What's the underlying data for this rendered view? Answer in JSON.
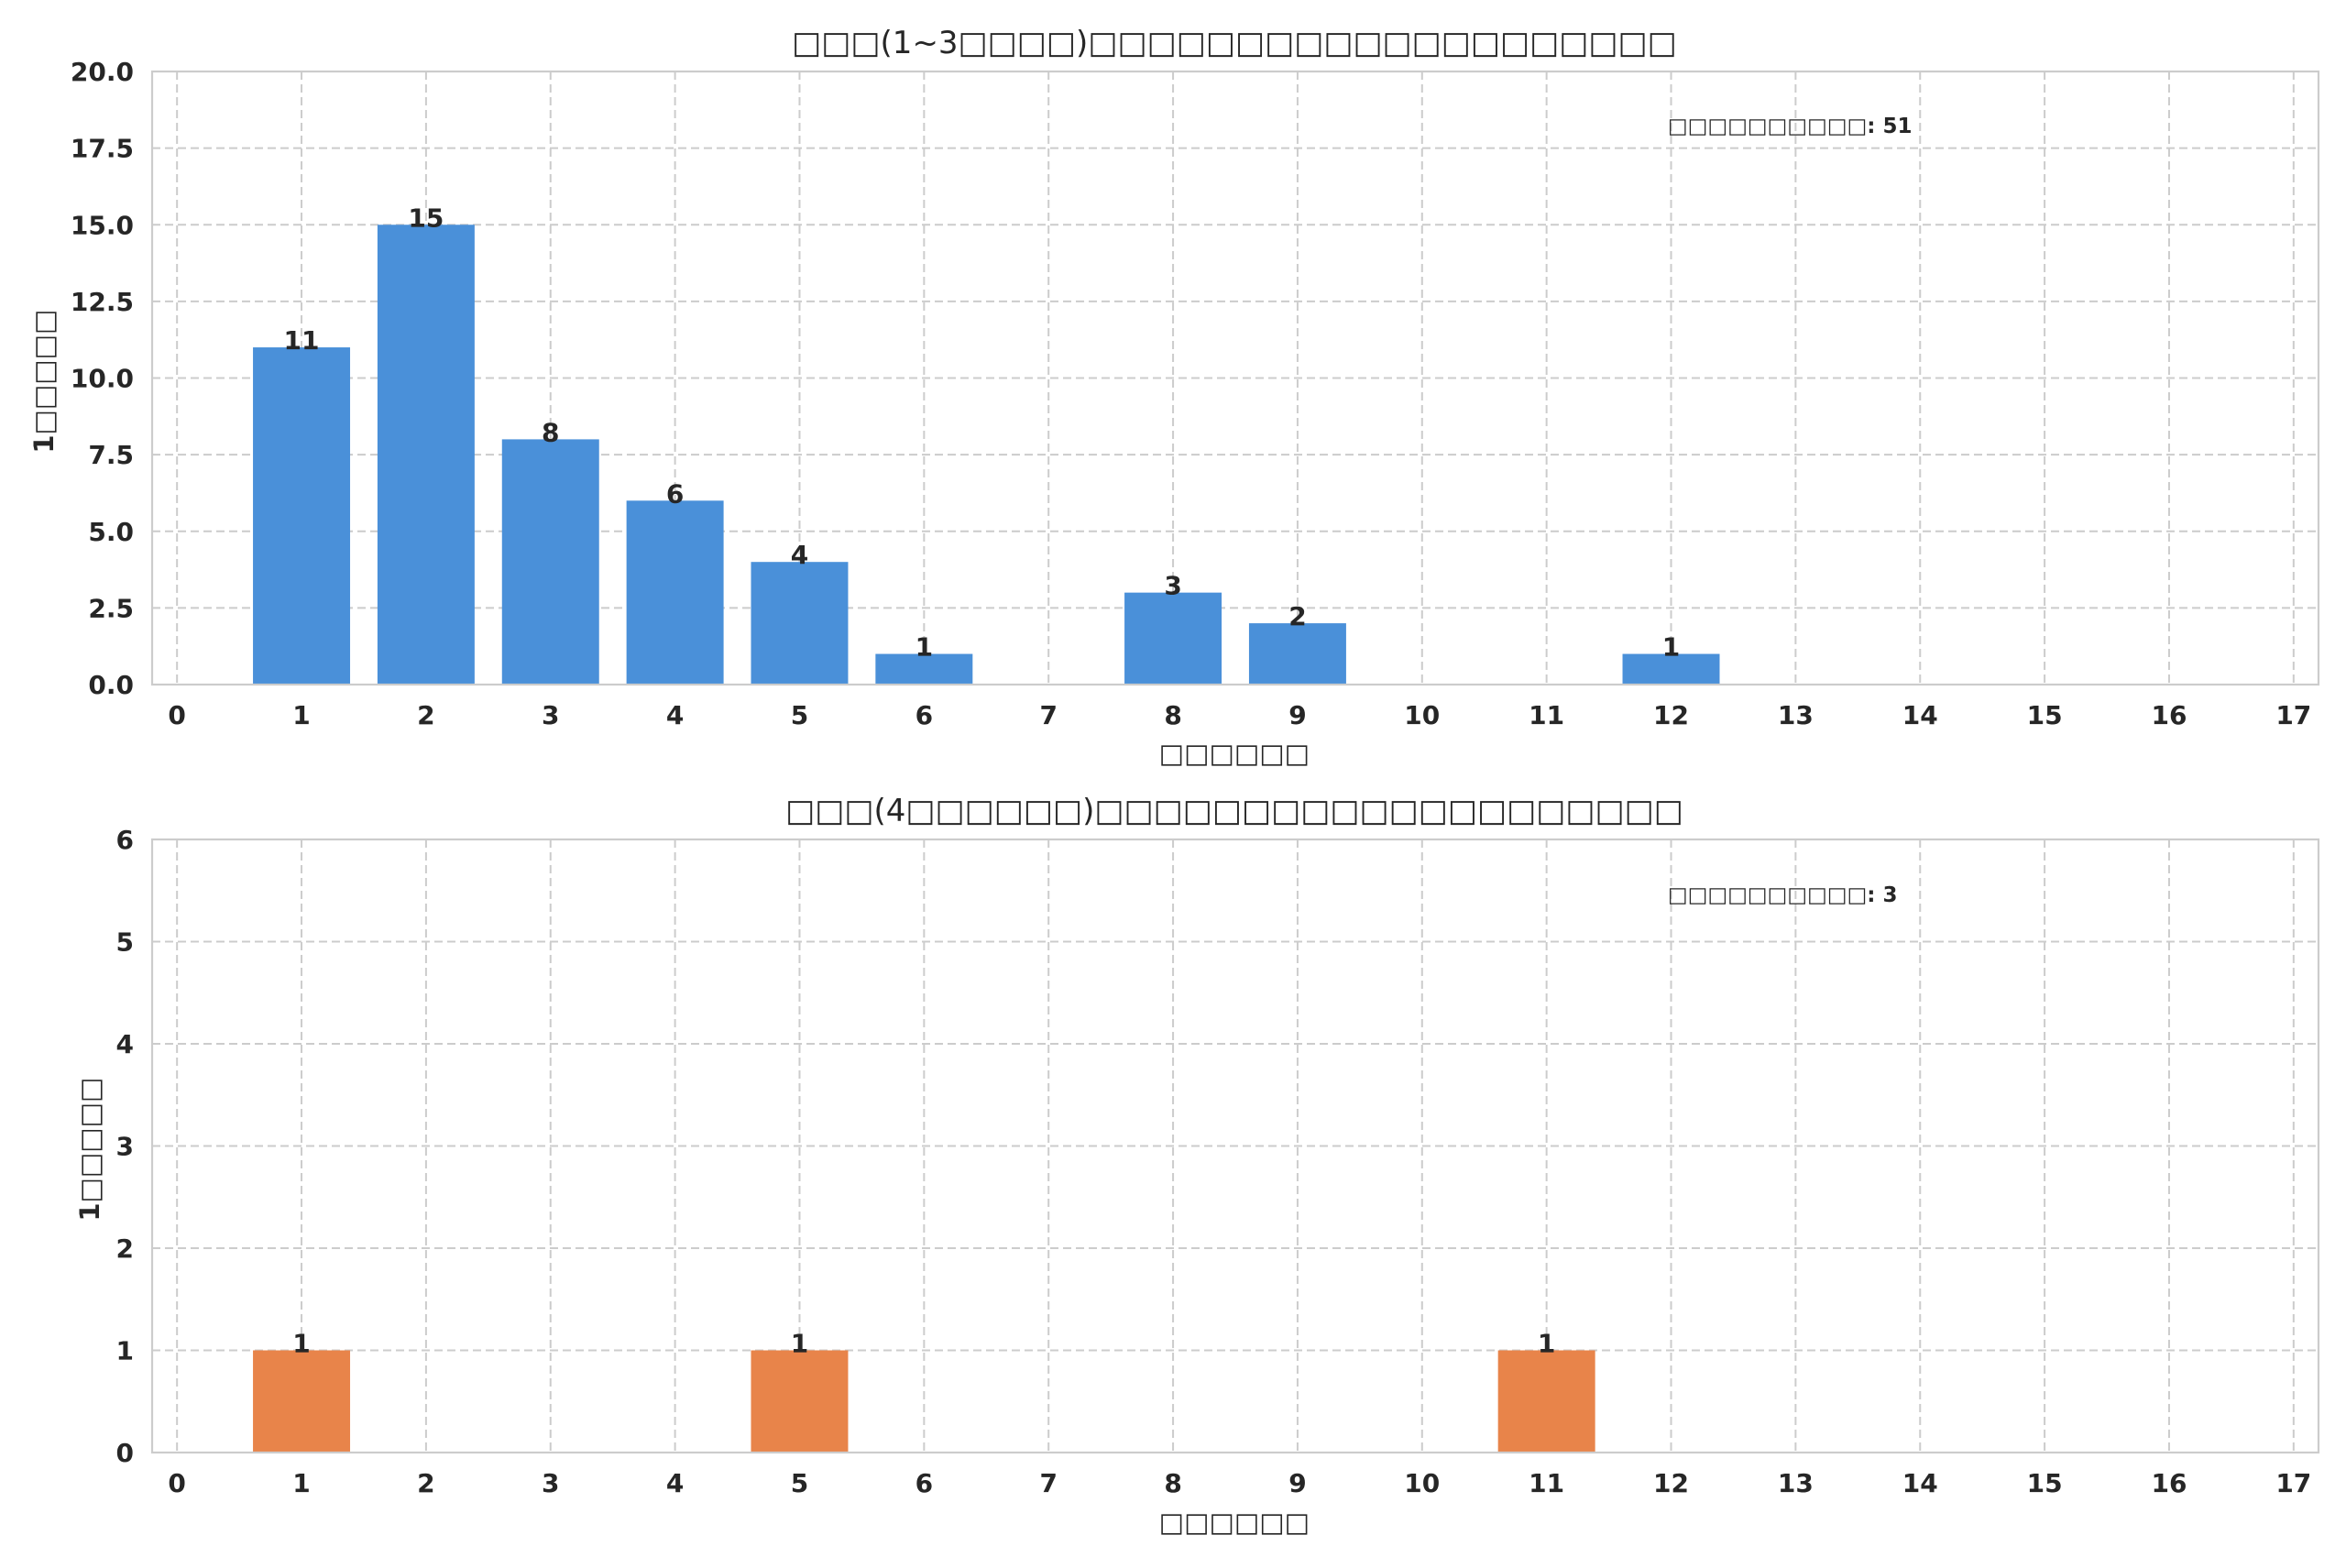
{
  "chart_data": [
    {
      "type": "bar",
      "title": "□□□(1~3□□□□)□□□□□□□□□□□□□□□□□□□□",
      "xlabel": "□□□□□□",
      "ylabel": "1□□□□□",
      "x": [
        1,
        2,
        3,
        4,
        5,
        6,
        8,
        9,
        12
      ],
      "values": [
        11,
        15,
        8,
        6,
        4,
        1,
        3,
        2,
        1
      ],
      "xlim": [
        -0.2,
        17.2
      ],
      "ylim": [
        0,
        20
      ],
      "xticks": [
        0,
        1,
        2,
        3,
        4,
        5,
        6,
        7,
        8,
        9,
        10,
        11,
        12,
        13,
        14,
        15,
        16,
        17
      ],
      "yticks": [
        "0.0",
        "2.5",
        "5.0",
        "7.5",
        "10.0",
        "12.5",
        "15.0",
        "17.5",
        "20.0"
      ],
      "annotation": "□□□□□□□□□□: 51",
      "grid": true,
      "color": "#4a90d9"
    },
    {
      "type": "bar",
      "title": "□□□(4□□□□□□)□□□□□□□□□□□□□□□□□□□□",
      "xlabel": "□□□□□□",
      "ylabel": "1□□□□□",
      "x": [
        1,
        5,
        11
      ],
      "values": [
        1,
        1,
        1
      ],
      "xlim": [
        -0.2,
        17.2
      ],
      "ylim": [
        0,
        6
      ],
      "xticks": [
        0,
        1,
        2,
        3,
        4,
        5,
        6,
        7,
        8,
        9,
        10,
        11,
        12,
        13,
        14,
        15,
        16,
        17
      ],
      "yticks": [
        "0",
        "1",
        "2",
        "3",
        "4",
        "5",
        "6"
      ],
      "annotation": "□□□□□□□□□□: 3",
      "grid": true,
      "color": "#e8844a"
    }
  ]
}
